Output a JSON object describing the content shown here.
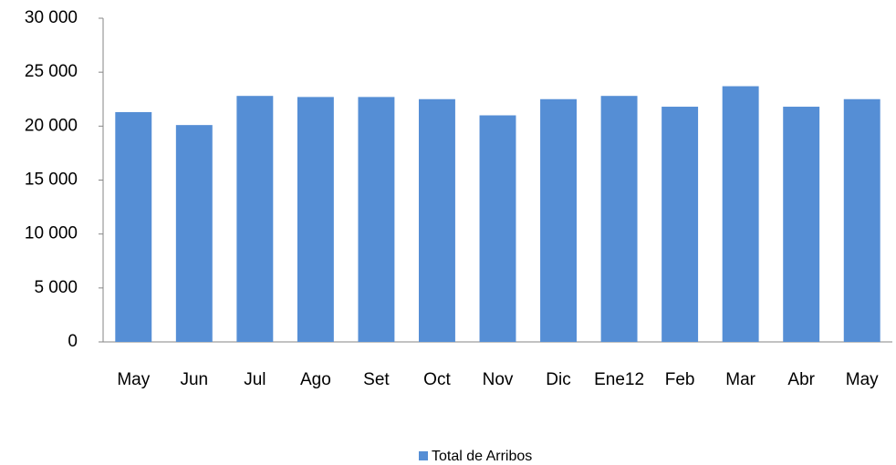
{
  "chart_data": {
    "type": "bar",
    "categories": [
      "May",
      "Jun",
      "Jul",
      "Ago",
      "Set",
      "Oct",
      "Nov",
      "Dic",
      "Ene12",
      "Feb",
      "Mar",
      "Abr",
      "May"
    ],
    "series": [
      {
        "name": "Total de Arribos",
        "color": "#558ed5",
        "values": [
          21300,
          20100,
          22800,
          22700,
          22700,
          22500,
          21000,
          22500,
          22800,
          21800,
          23700,
          21800,
          22500
        ]
      }
    ],
    "ylim": [
      0,
      30000
    ],
    "yticks": [
      0,
      {
        "value": 5000,
        "label": "5 000"
      },
      {
        "value": 10000,
        "label": "10 000"
      },
      {
        "value": 15000,
        "label": "15 000"
      },
      {
        "value": 20000,
        "label": "20 000"
      },
      {
        "value": 25000,
        "label": "25 000"
      },
      {
        "value": 30000,
        "label": "30 000"
      }
    ],
    "grid": false,
    "legend": "bottom"
  }
}
